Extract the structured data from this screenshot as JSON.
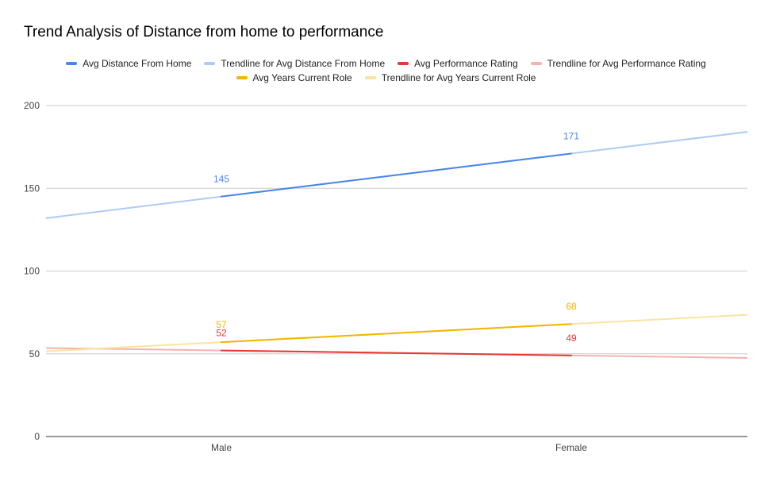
{
  "chart_data": {
    "type": "line",
    "title": "Trend Analysis of Distance from home to performance",
    "categories": [
      "Male",
      "Female"
    ],
    "y_ticks": [
      "0",
      "50",
      "100",
      "150",
      "200"
    ],
    "ylim": [
      0,
      200
    ],
    "grid": true,
    "legend_position": "top",
    "series": [
      {
        "name": "Avg Distance From Home",
        "values": [
          145,
          171
        ],
        "labels": [
          "145",
          "171"
        ],
        "color": "#4a86e8"
      },
      {
        "name": "Avg Performance Rating",
        "values": [
          52,
          49
        ],
        "labels": [
          "52",
          "49"
        ],
        "color": "#e53935"
      },
      {
        "name": "Avg Years Current Role",
        "values": [
          57,
          68
        ],
        "labels": [
          "57",
          "68"
        ],
        "color": "#f4b400"
      }
    ],
    "trendlines": [
      {
        "name": "Trendline for Avg Distance From Home",
        "color": "#aecbf5"
      },
      {
        "name": "Trendline for Avg Performance Rating",
        "color": "#f5b2ae"
      },
      {
        "name": "Trendline for Avg Years Current Role",
        "color": "#fbe3a0"
      }
    ]
  }
}
